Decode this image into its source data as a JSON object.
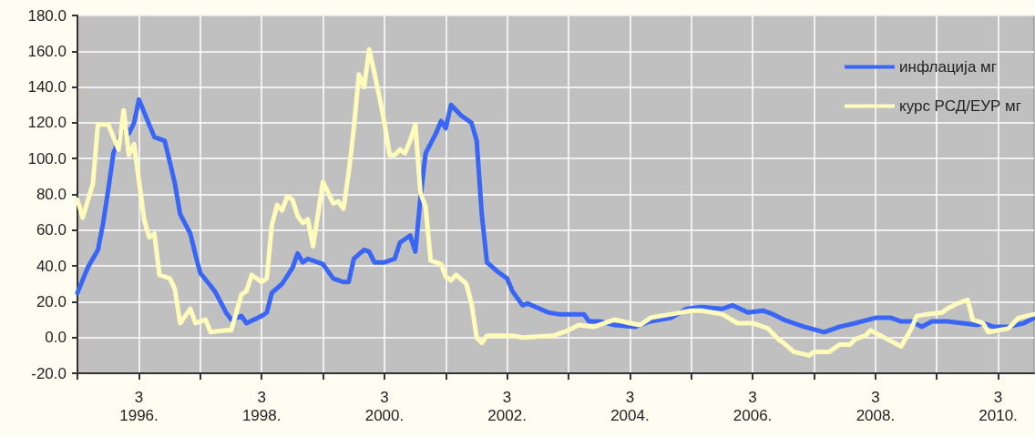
{
  "chart_data": {
    "type": "line",
    "xlim": [
      "1995-03",
      "2010-10"
    ],
    "xticks": [
      {
        "value": "1995-03",
        "label": null
      },
      {
        "value": "1996-03",
        "label": "3\n1996."
      },
      {
        "value": "1997-03",
        "label": null
      },
      {
        "value": "1998-03",
        "label": "3\n1998."
      },
      {
        "value": "1999-03",
        "label": null
      },
      {
        "value": "2000-03",
        "label": "3\n2000."
      },
      {
        "value": "2001-03",
        "label": null
      },
      {
        "value": "2002-03",
        "label": "3\n2002."
      },
      {
        "value": "2003-03",
        "label": null
      },
      {
        "value": "2004-03",
        "label": "3\n2004."
      },
      {
        "value": "2005-03",
        "label": null
      },
      {
        "value": "2006-03",
        "label": "3\n2006."
      },
      {
        "value": "2007-03",
        "label": null
      },
      {
        "value": "2008-03",
        "label": "3\n2008."
      },
      {
        "value": "2009-03",
        "label": null
      },
      {
        "value": "2010-03",
        "label": "3\n2010."
      }
    ],
    "ylim": [
      -20,
      180
    ],
    "yticks": [
      {
        "value": -20,
        "label": "-20.0"
      },
      {
        "value": 0,
        "label": "0.0"
      },
      {
        "value": 20,
        "label": "20.0"
      },
      {
        "value": 40,
        "label": "40.0"
      },
      {
        "value": 60,
        "label": "60.0"
      },
      {
        "value": 80,
        "label": "80.0"
      },
      {
        "value": 100,
        "label": "100.0"
      },
      {
        "value": 120,
        "label": "120.0"
      },
      {
        "value": 140,
        "label": "140.0"
      },
      {
        "value": 160,
        "label": "160.0"
      },
      {
        "value": 180,
        "label": "180.0"
      }
    ],
    "grid": true,
    "legend": "top right",
    "marker": "none",
    "line_style": "solid",
    "series": [
      {
        "name": "инфлација мг",
        "color": "#3a66f5",
        "x": [
          "1995-03",
          "1995-05",
          "1995-07",
          "1995-08",
          "1995-09",
          "1995-10",
          "1995-11",
          "1995-12",
          "1996-01",
          "1996-02",
          "1996-03",
          "1996-05",
          "1996-06",
          "1996-08",
          "1996-09",
          "1996-10",
          "1996-11",
          "1997-01",
          "1997-02",
          "1997-03",
          "1997-05",
          "1997-06",
          "1997-08",
          "1997-09",
          "1997-11",
          "1997-12",
          "1998-03",
          "1998-04",
          "1998-05",
          "1998-07",
          "1998-09",
          "1998-10",
          "1998-11",
          "1998-12",
          "1999-03",
          "1999-05",
          "1999-07",
          "1999-08",
          "1999-09",
          "1999-11",
          "1999-12",
          "2000-01",
          "2000-03",
          "2000-05",
          "2000-06",
          "2000-08",
          "2000-09",
          "2000-10",
          "2000-11",
          "2001-01",
          "2001-02",
          "2001-03",
          "2001-04",
          "2001-06",
          "2001-08",
          "2001-09",
          "2001-10",
          "2001-11",
          "2002-01",
          "2002-03",
          "2002-04",
          "2002-06",
          "2002-07",
          "2002-11",
          "2003-01",
          "2003-06",
          "2003-07",
          "2003-09",
          "2003-12",
          "2004-04",
          "2004-07",
          "2004-11",
          "2005-02",
          "2005-05",
          "2005-09",
          "2005-11",
          "2006-02",
          "2006-05",
          "2006-07",
          "2006-09",
          "2007-01",
          "2007-05",
          "2007-08",
          "2007-11",
          "2008-03",
          "2008-06",
          "2008-08",
          "2008-10",
          "2008-12",
          "2009-02",
          "2009-05",
          "2009-08",
          "2009-11",
          "2009-12",
          "2010-02",
          "2010-05",
          "2010-08",
          "2010-10"
        ],
        "values": [
          25,
          39,
          49,
          64,
          83,
          103,
          110,
          120,
          114,
          120,
          133,
          119,
          112,
          110,
          98,
          86,
          69,
          58,
          46,
          36,
          29,
          25,
          14,
          10,
          12,
          8,
          12,
          14,
          25,
          30,
          39,
          47,
          42,
          44,
          41,
          33,
          31,
          31,
          44,
          49,
          48,
          42,
          42,
          44,
          53,
          57,
          48,
          78,
          103,
          114,
          121,
          117,
          130,
          124,
          120,
          110,
          69,
          42,
          37,
          33,
          26,
          18,
          19,
          14,
          13,
          13,
          9,
          9,
          7,
          6,
          9,
          11,
          16,
          17,
          16,
          18,
          14,
          15,
          13,
          10,
          6,
          3,
          6,
          8,
          11,
          11,
          9,
          9,
          6,
          9,
          9,
          8,
          7,
          8,
          6,
          6,
          8,
          11
        ]
      },
      {
        "name": "курс РСД/ЕУР мг",
        "color": "#fffcbb",
        "x": [
          "1995-03",
          "1995-04",
          "1995-06",
          "1995-07",
          "1995-09",
          "1995-11",
          "1995-12",
          "1996-01",
          "1996-02",
          "1996-04",
          "1996-05",
          "1996-06",
          "1996-07",
          "1996-09",
          "1996-10",
          "1996-11",
          "1997-01",
          "1997-02",
          "1997-04",
          "1997-05",
          "1997-08",
          "1997-09",
          "1997-11",
          "1997-12",
          "1998-01",
          "1998-03",
          "1998-04",
          "1998-05",
          "1998-06",
          "1998-07",
          "1998-08",
          "1998-09",
          "1998-10",
          "1998-11",
          "1998-12",
          "1999-01",
          "1999-03",
          "1999-05",
          "1999-06",
          "1999-07",
          "1999-08",
          "1999-09",
          "1999-10",
          "1999-11",
          "1999-12",
          "2000-01",
          "2000-02",
          "2000-03",
          "2000-04",
          "2000-05",
          "2000-06",
          "2000-07",
          "2000-08",
          "2000-09",
          "2000-10",
          "2000-11",
          "2000-12",
          "2001-02",
          "2001-03",
          "2001-04",
          "2001-05",
          "2001-07",
          "2001-08",
          "2001-09",
          "2001-10",
          "2001-11",
          "2002-01",
          "2002-04",
          "2002-06",
          "2002-12",
          "2003-03",
          "2003-05",
          "2003-08",
          "2003-12",
          "2004-03",
          "2004-05",
          "2004-07",
          "2004-11",
          "2005-03",
          "2005-05",
          "2005-09",
          "2005-12",
          "2006-03",
          "2006-06",
          "2006-08",
          "2006-09",
          "2006-11",
          "2007-02",
          "2007-03",
          "2007-06",
          "2007-08",
          "2007-10",
          "2007-11",
          "2008-01",
          "2008-02",
          "2008-04",
          "2008-06",
          "2008-08",
          "2008-10",
          "2008-11",
          "2009-01",
          "2009-04",
          "2009-05",
          "2009-07",
          "2009-09",
          "2009-10",
          "2009-12",
          "2010-01",
          "2010-05",
          "2010-07",
          "2010-10"
        ],
        "values": [
          77,
          67,
          86,
          119,
          119,
          105,
          127,
          102,
          108,
          66,
          56,
          58,
          35,
          33,
          27,
          8,
          16,
          8,
          10,
          3,
          4,
          4,
          24,
          26,
          35,
          31,
          33,
          63,
          74,
          71,
          79,
          77,
          68,
          64,
          66,
          51,
          87,
          75,
          76,
          72,
          92,
          117,
          147,
          140,
          161,
          148,
          134,
          120,
          102,
          102,
          105,
          103,
          110,
          119,
          81,
          73,
          43,
          41,
          34,
          32,
          35,
          30,
          19,
          0,
          -3,
          1,
          1,
          1,
          0,
          1,
          4,
          7,
          6,
          10,
          8,
          7,
          11,
          13,
          15,
          15,
          13,
          8,
          8,
          5,
          -1,
          -3,
          -8,
          -10,
          -8,
          -8,
          -4,
          -4,
          -1,
          1,
          4,
          1,
          -2,
          -5,
          5,
          12,
          13,
          14,
          16,
          19,
          21,
          10,
          8,
          3,
          5,
          11,
          13
        ]
      }
    ]
  }
}
